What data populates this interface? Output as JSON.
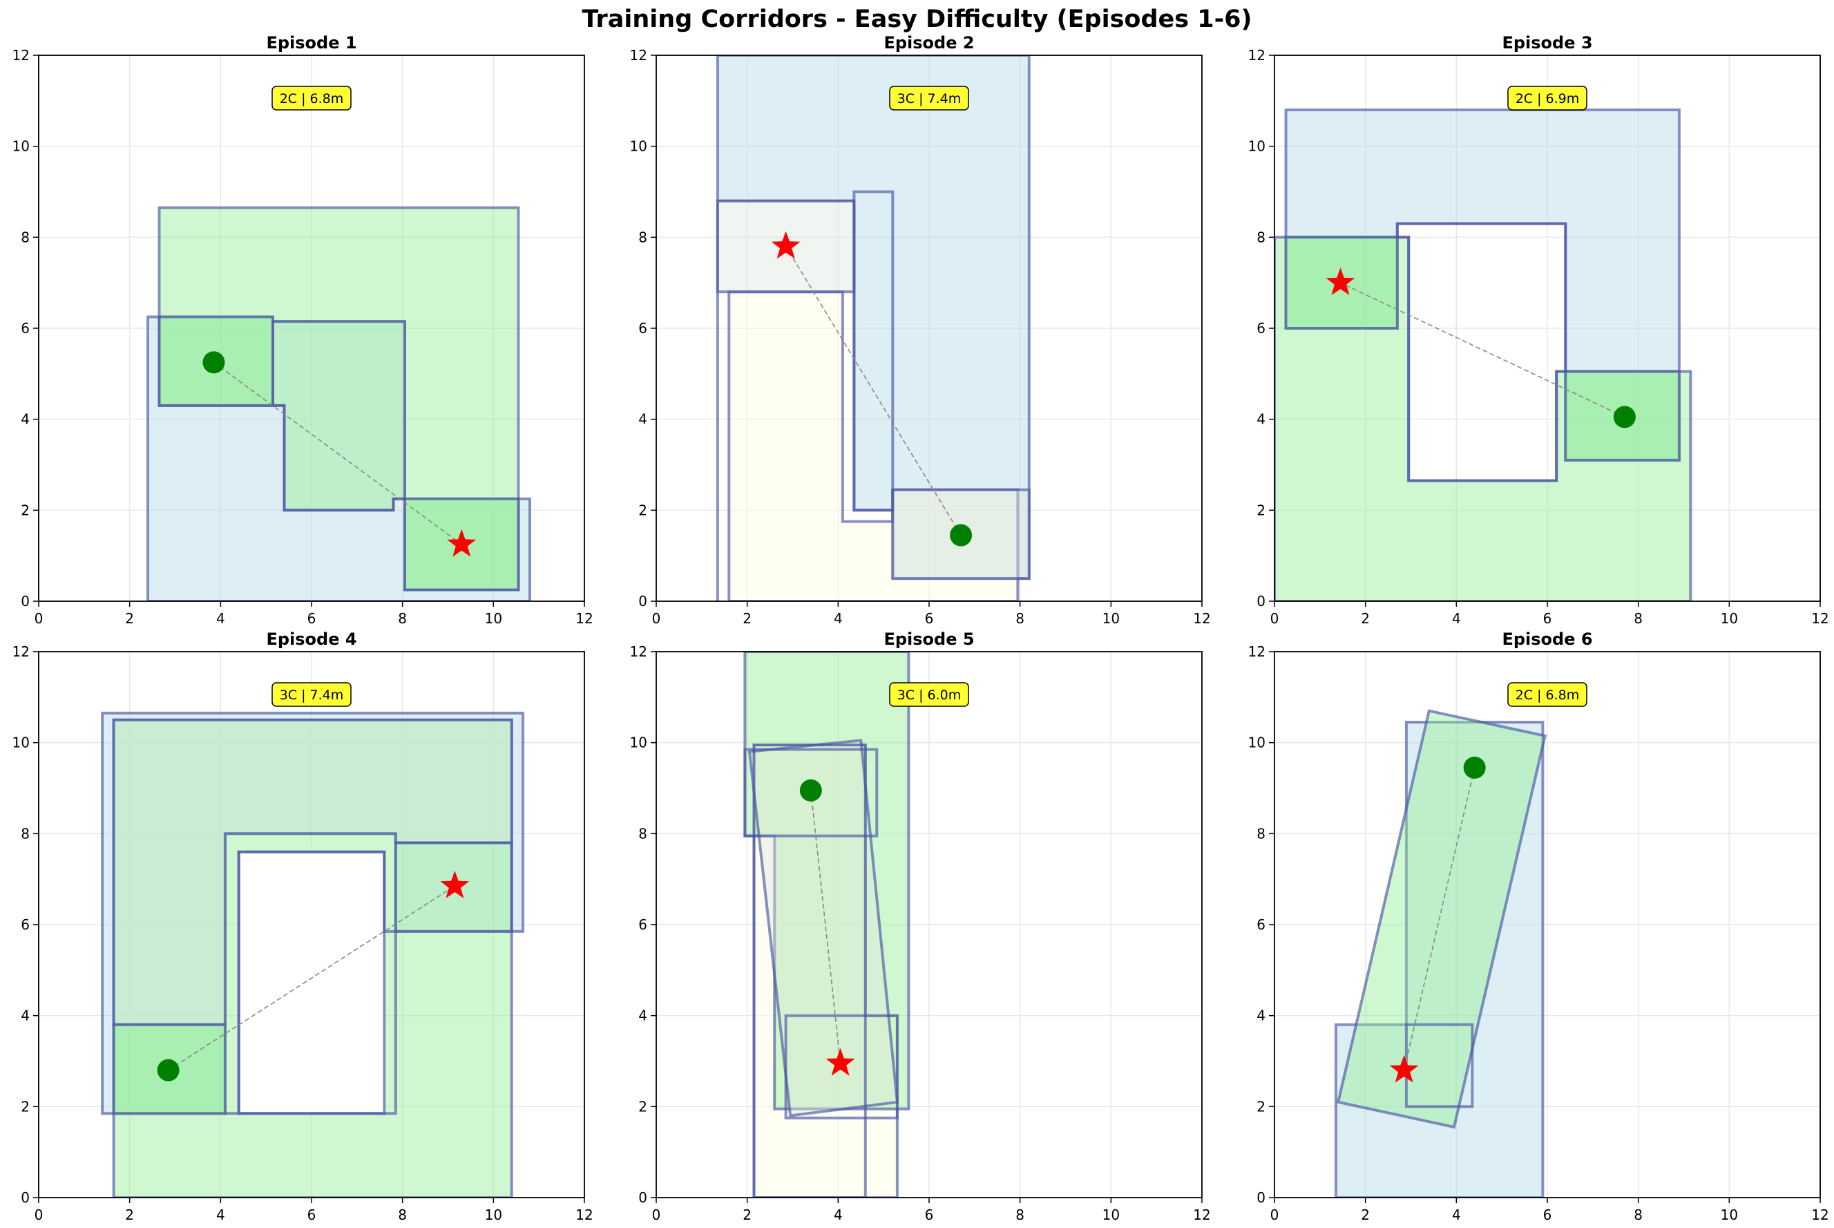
{
  "title": "Training Corridors - Easy Difficulty (Episodes 1-6)",
  "colors": {
    "grid": "#e8e8e8",
    "outline": "#4a55a5",
    "fill_blue": "#add8e6",
    "fill_green": "#90ee90",
    "fill_lightgreen": "#c8f0b0",
    "fill_yellow": "#fffce0",
    "fill_gray": "#dde8dd",
    "start": "#008000",
    "goal": "#ff0000",
    "badge": "#ffff33"
  },
  "chart_data": [
    {
      "type": "scatter",
      "title": "Episode 1",
      "badge": "2C | 6.8m",
      "xlim": [
        0,
        12
      ],
      "ylim": [
        0,
        12
      ],
      "xticks": [
        "0",
        "2",
        "4",
        "6",
        "8",
        "10",
        "12"
      ],
      "yticks": [
        "0",
        "2",
        "4",
        "6",
        "8",
        "10",
        "12"
      ],
      "grid": true,
      "start": [
        3.85,
        5.25
      ],
      "goal": [
        9.3,
        1.25
      ],
      "shapes": [
        {
          "kind": "poly",
          "fill": "fill_blue",
          "points": [
            [
              2.4,
              0
            ],
            [
              10.8,
              0
            ],
            [
              10.8,
              2.25
            ],
            [
              8.05,
              2.25
            ],
            [
              8.05,
              6.15
            ],
            [
              5.15,
              6.15
            ],
            [
              5.15,
              6.25
            ],
            [
              2.4,
              6.25
            ]
          ]
        },
        {
          "kind": "poly",
          "fill": "fill_green",
          "points": [
            [
              2.65,
              8.65
            ],
            [
              10.55,
              8.65
            ],
            [
              10.55,
              0.25
            ],
            [
              8.05,
              0.25
            ],
            [
              8.05,
              2.25
            ],
            [
              7.8,
              2.25
            ],
            [
              7.8,
              2.0
            ],
            [
              5.4,
              2.0
            ],
            [
              5.4,
              4.3
            ],
            [
              2.65,
              4.3
            ]
          ]
        },
        {
          "kind": "rect",
          "fill": "fill_green",
          "x": [
            2.65,
            5.15
          ],
          "y": [
            4.3,
            6.25
          ]
        },
        {
          "kind": "rect",
          "fill": "fill_green",
          "x": [
            8.05,
            10.55
          ],
          "y": [
            0.25,
            2.25
          ]
        },
        {
          "kind": "poly",
          "fill": "none",
          "points": [
            [
              5.15,
              6.15
            ],
            [
              8.05,
              6.15
            ],
            [
              8.05,
              2.25
            ],
            [
              7.8,
              2.25
            ],
            [
              7.8,
              2.0
            ],
            [
              5.4,
              2.0
            ],
            [
              5.4,
              4.3
            ],
            [
              5.15,
              4.3
            ]
          ]
        }
      ]
    },
    {
      "type": "scatter",
      "title": "Episode 2",
      "badge": "3C | 7.4m",
      "xlim": [
        0,
        12
      ],
      "ylim": [
        0,
        12
      ],
      "xticks": [
        "0",
        "2",
        "4",
        "6",
        "8",
        "10",
        "12"
      ],
      "yticks": [
        "0",
        "2",
        "4",
        "6",
        "8",
        "10",
        "12"
      ],
      "grid": true,
      "start": [
        6.7,
        1.45
      ],
      "goal": [
        2.85,
        7.8
      ],
      "shapes": [
        {
          "kind": "poly",
          "fill": "fill_blue",
          "points": [
            [
              1.35,
              0
            ],
            [
              1.35,
              12
            ],
            [
              8.2,
              12
            ],
            [
              8.2,
              0.5
            ],
            [
              5.2,
              0.5
            ],
            [
              5.2,
              2.0
            ],
            [
              4.35,
              2.0
            ],
            [
              4.35,
              8.8
            ],
            [
              1.35,
              8.8
            ]
          ]
        },
        {
          "kind": "poly",
          "fill": "fill_yellow",
          "points": [
            [
              1.6,
              0
            ],
            [
              7.95,
              0
            ],
            [
              7.95,
              2.45
            ],
            [
              5.2,
              2.45
            ],
            [
              5.2,
              1.75
            ],
            [
              4.1,
              1.75
            ],
            [
              4.1,
              6.8
            ],
            [
              1.6,
              6.8
            ]
          ]
        },
        {
          "kind": "rect",
          "fill": "fill_gray",
          "x": [
            1.35,
            4.35
          ],
          "y": [
            6.8,
            8.8
          ]
        },
        {
          "kind": "rect",
          "fill": "fill_gray",
          "x": [
            5.2,
            8.2
          ],
          "y": [
            0.5,
            2.45
          ]
        },
        {
          "kind": "rect",
          "fill": "none",
          "x": [
            4.35,
            5.2
          ],
          "y": [
            2.0,
            9.0
          ]
        }
      ]
    },
    {
      "type": "scatter",
      "title": "Episode 3",
      "badge": "2C | 6.9m",
      "xlim": [
        0,
        12
      ],
      "ylim": [
        0,
        12
      ],
      "xticks": [
        "0",
        "2",
        "4",
        "6",
        "8",
        "10",
        "12"
      ],
      "yticks": [
        "0",
        "2",
        "4",
        "6",
        "8",
        "10",
        "12"
      ],
      "grid": true,
      "start": [
        7.7,
        4.05
      ],
      "goal": [
        1.45,
        7.0
      ],
      "shapes": [
        {
          "kind": "poly",
          "fill": "fill_blue",
          "points": [
            [
              0.25,
              6.0
            ],
            [
              0.25,
              10.8
            ],
            [
              8.9,
              10.8
            ],
            [
              8.9,
              3.1
            ],
            [
              6.4,
              3.1
            ],
            [
              6.4,
              8.3
            ],
            [
              2.7,
              8.3
            ],
            [
              2.7,
              6.0
            ]
          ]
        },
        {
          "kind": "poly",
          "fill": "fill_green",
          "points": [
            [
              0,
              0
            ],
            [
              0,
              8.0
            ],
            [
              2.95,
              8.0
            ],
            [
              2.95,
              2.65
            ],
            [
              6.2,
              2.65
            ],
            [
              6.2,
              5.05
            ],
            [
              9.15,
              5.05
            ],
            [
              9.15,
              0
            ]
          ]
        },
        {
          "kind": "rect",
          "fill": "fill_green",
          "x": [
            0.25,
            2.7
          ],
          "y": [
            6.0,
            8.0
          ]
        },
        {
          "kind": "rect",
          "fill": "fill_green",
          "x": [
            6.4,
            8.9
          ],
          "y": [
            3.1,
            5.05
          ]
        },
        {
          "kind": "poly",
          "fill": "none",
          "points": [
            [
              2.7,
              8.0
            ],
            [
              2.7,
              8.3
            ],
            [
              6.4,
              8.3
            ],
            [
              6.4,
              5.05
            ],
            [
              6.2,
              5.05
            ],
            [
              6.2,
              2.65
            ],
            [
              2.95,
              2.65
            ],
            [
              2.95,
              8.0
            ]
          ]
        }
      ]
    },
    {
      "type": "scatter",
      "title": "Episode 4",
      "badge": "3C | 7.4m",
      "xlim": [
        0,
        12
      ],
      "ylim": [
        0,
        12
      ],
      "xticks": [
        "0",
        "2",
        "4",
        "6",
        "8",
        "10",
        "12"
      ],
      "yticks": [
        "0",
        "2",
        "4",
        "6",
        "8",
        "10",
        "12"
      ],
      "grid": true,
      "start": [
        2.85,
        2.8
      ],
      "goal": [
        9.15,
        6.85
      ],
      "shapes": [
        {
          "kind": "poly",
          "fill": "fill_blue",
          "points": [
            [
              1.4,
              1.85
            ],
            [
              1.4,
              10.65
            ],
            [
              10.65,
              10.65
            ],
            [
              10.65,
              5.85
            ],
            [
              7.85,
              5.85
            ],
            [
              7.85,
              8.0
            ],
            [
              4.1,
              8.0
            ],
            [
              4.1,
              1.85
            ]
          ]
        },
        {
          "kind": "poly",
          "fill": "fill_green",
          "points": [
            [
              1.65,
              0
            ],
            [
              1.65,
              10.5
            ],
            [
              10.4,
              10.5
            ],
            [
              10.4,
              0
            ]
          ]
        },
        {
          "kind": "poly",
          "fill": "fill_gray",
          "points": [
            [
              1.65,
              3.8
            ],
            [
              1.65,
              10.5
            ],
            [
              10.4,
              10.5
            ],
            [
              10.4,
              7.8
            ],
            [
              7.85,
              7.8
            ],
            [
              7.85,
              8.0
            ],
            [
              4.1,
              8.0
            ],
            [
              4.1,
              3.8
            ]
          ]
        },
        {
          "kind": "rect",
          "fill": "white",
          "x": [
            4.4,
            7.6
          ],
          "y": [
            1.85,
            7.6
          ]
        },
        {
          "kind": "poly",
          "fill": "none",
          "points": [
            [
              4.1,
              1.85
            ],
            [
              7.85,
              1.85
            ],
            [
              7.85,
              5.85
            ],
            [
              7.6,
              5.85
            ],
            [
              7.6,
              7.6
            ],
            [
              4.4,
              7.6
            ],
            [
              4.4,
              1.85
            ]
          ]
        },
        {
          "kind": "rect",
          "fill": "fill_green",
          "x": [
            1.65,
            4.1
          ],
          "y": [
            1.85,
            3.8
          ]
        },
        {
          "kind": "rect",
          "fill": "none",
          "x": [
            7.85,
            10.4
          ],
          "y": [
            5.85,
            7.8
          ]
        }
      ]
    },
    {
      "type": "scatter",
      "title": "Episode 5",
      "badge": "3C | 6.0m",
      "xlim": [
        0,
        12
      ],
      "ylim": [
        0,
        12
      ],
      "xticks": [
        "0",
        "2",
        "4",
        "6",
        "8",
        "10",
        "12"
      ],
      "yticks": [
        "0",
        "2",
        "4",
        "6",
        "8",
        "10",
        "12"
      ],
      "grid": true,
      "start": [
        3.4,
        8.95
      ],
      "goal": [
        4.05,
        2.95
      ],
      "shapes": [
        {
          "kind": "poly",
          "fill": "fill_yellow",
          "points": [
            [
              2.15,
              0
            ],
            [
              2.15,
              9.95
            ],
            [
              4.6,
              9.95
            ],
            [
              4.6,
              4.0
            ],
            [
              5.3,
              4.0
            ],
            [
              5.3,
              0
            ]
          ]
        },
        {
          "kind": "poly",
          "fill": "fill_green",
          "points": [
            [
              1.95,
              12
            ],
            [
              5.55,
              12
            ],
            [
              5.55,
              1.95
            ],
            [
              2.6,
              1.95
            ],
            [
              2.6,
              7.95
            ],
            [
              1.95,
              7.95
            ]
          ]
        },
        {
          "kind": "poly",
          "fill": "fill_gray",
          "points": [
            [
              2.05,
              9.8
            ],
            [
              4.5,
              10.05
            ],
            [
              5.3,
              2.1
            ],
            [
              2.95,
              1.8
            ]
          ]
        },
        {
          "kind": "rect",
          "fill": "none",
          "x": [
            2.15,
            4.6
          ],
          "y": [
            0,
            9.95
          ]
        },
        {
          "kind": "rect",
          "fill": "none",
          "x": [
            1.95,
            4.85
          ],
          "y": [
            7.95,
            9.85
          ]
        },
        {
          "kind": "rect",
          "fill": "none",
          "x": [
            2.85,
            5.3
          ],
          "y": [
            1.75,
            4.0
          ]
        }
      ]
    },
    {
      "type": "scatter",
      "title": "Episode 6",
      "badge": "2C | 6.8m",
      "xlim": [
        0,
        12
      ],
      "ylim": [
        0,
        12
      ],
      "xticks": [
        "0",
        "2",
        "4",
        "6",
        "8",
        "10",
        "12"
      ],
      "yticks": [
        "0",
        "2",
        "4",
        "6",
        "8",
        "10",
        "12"
      ],
      "grid": true,
      "start": [
        4.4,
        9.45
      ],
      "goal": [
        2.85,
        2.8
      ],
      "shapes": [
        {
          "kind": "poly",
          "fill": "fill_blue",
          "points": [
            [
              1.35,
              0
            ],
            [
              1.35,
              3.8
            ],
            [
              2.9,
              3.8
            ],
            [
              2.9,
              10.45
            ],
            [
              5.9,
              10.45
            ],
            [
              5.9,
              0
            ]
          ]
        },
        {
          "kind": "poly",
          "fill": "fill_green",
          "points": [
            [
              1.4,
              2.1
            ],
            [
              3.95,
              1.55
            ],
            [
              5.95,
              10.15
            ],
            [
              3.4,
              10.7
            ]
          ]
        },
        {
          "kind": "rect",
          "fill": "none",
          "x": [
            2.9,
            4.35
          ],
          "y": [
            2.0,
            3.8
          ]
        }
      ]
    }
  ]
}
